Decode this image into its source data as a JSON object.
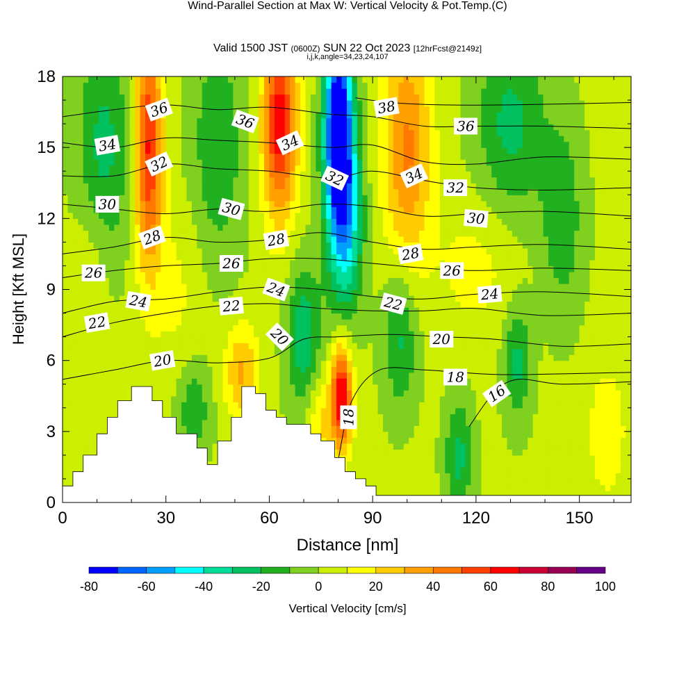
{
  "header": {
    "title": "Wind-Parallel Section at Max W: Vertical Velocity & Pot.Temp.",
    "copyright": "(C)",
    "valid_prefix": "Valid 1500 JST",
    "valid_utc": "(0600Z)",
    "valid_date": "SUN 22 Oct 2023",
    "forecast": "[12hrFcst@2149z]",
    "ijk": "i,j,k,angle=34,23,24,107"
  },
  "chart_data": {
    "type": "heatmap",
    "xlabel": "Distance [nm]",
    "ylabel": "Height [Kft MSL]",
    "xlim": [
      0,
      165
    ],
    "ylim": [
      0,
      18
    ],
    "xticks": [
      0,
      30,
      60,
      90,
      120,
      150
    ],
    "yticks": [
      0,
      3,
      6,
      9,
      12,
      15,
      18
    ],
    "colorbar": {
      "label": "Vertical Velocity [cm/s]",
      "ticks": [
        -80,
        -60,
        -40,
        -20,
        0,
        20,
        40,
        60,
        80,
        100
      ],
      "levels": [
        -80,
        -70,
        -60,
        -50,
        -40,
        -30,
        -20,
        -10,
        0,
        10,
        20,
        30,
        40,
        50,
        60,
        70,
        80,
        90,
        100
      ],
      "colors": [
        "#0000ff",
        "#0066ff",
        "#00a0ff",
        "#00ffff",
        "#00dd99",
        "#00c060",
        "#20b020",
        "#80d020",
        "#ccee00",
        "#ffff00",
        "#ffcc00",
        "#ffa000",
        "#ff7800",
        "#ff4000",
        "#ff0000",
        "#cc0033",
        "#990055",
        "#660088"
      ]
    },
    "terrain": [
      [
        0,
        0.7
      ],
      [
        3,
        0.7
      ],
      [
        3,
        1.3
      ],
      [
        6,
        1.3
      ],
      [
        6,
        2
      ],
      [
        10,
        2
      ],
      [
        10,
        2.9
      ],
      [
        13,
        2.9
      ],
      [
        13,
        3.6
      ],
      [
        16,
        3.6
      ],
      [
        16,
        4.3
      ],
      [
        20,
        4.3
      ],
      [
        20,
        4.9
      ],
      [
        26,
        4.9
      ],
      [
        26,
        4.3
      ],
      [
        29,
        4.3
      ],
      [
        29,
        3.6
      ],
      [
        33,
        3.6
      ],
      [
        33,
        2.9
      ],
      [
        39,
        2.9
      ],
      [
        39,
        2.3
      ],
      [
        42,
        2.3
      ],
      [
        42,
        1.6
      ],
      [
        45,
        1.6
      ],
      [
        45,
        2.6
      ],
      [
        49,
        2.6
      ],
      [
        49,
        3.6
      ],
      [
        52,
        3.6
      ],
      [
        52,
        4.9
      ],
      [
        56,
        4.9
      ],
      [
        56,
        4.6
      ],
      [
        59,
        4.6
      ],
      [
        59,
        3.9
      ],
      [
        62,
        3.9
      ],
      [
        62,
        3.6
      ],
      [
        65,
        3.6
      ],
      [
        65,
        3.3
      ],
      [
        72,
        3.3
      ],
      [
        72,
        2.9
      ],
      [
        75,
        2.9
      ],
      [
        75,
        2.6
      ],
      [
        79,
        2.6
      ],
      [
        79,
        1.9
      ],
      [
        82,
        1.9
      ],
      [
        82,
        1.3
      ],
      [
        85,
        1.3
      ],
      [
        85,
        1
      ],
      [
        88,
        1
      ],
      [
        88,
        0.7
      ],
      [
        91,
        0.7
      ],
      [
        91,
        0.3
      ],
      [
        165,
        0.3
      ]
    ],
    "w_field": [
      {
        "x": 80,
        "z": 16,
        "w": -90,
        "sx": 4,
        "sz": 4
      },
      {
        "x": 82,
        "z": 12,
        "w": -50,
        "sx": 5,
        "sz": 4
      },
      {
        "x": 25,
        "z": 15,
        "w": 60,
        "sx": 4,
        "sz": 5
      },
      {
        "x": 63,
        "z": 16,
        "w": 65,
        "sx": 5,
        "sz": 4
      },
      {
        "x": 100,
        "z": 15,
        "w": 40,
        "sx": 7,
        "sz": 5
      },
      {
        "x": 81,
        "z": 4.5,
        "w": 70,
        "sx": 3,
        "sz": 2.2
      },
      {
        "x": 52,
        "z": 5.5,
        "w": 30,
        "sx": 5,
        "sz": 2
      },
      {
        "x": 12,
        "z": 15,
        "w": -25,
        "sx": 8,
        "sz": 5
      },
      {
        "x": 45,
        "z": 15,
        "w": -20,
        "sx": 8,
        "sz": 5
      },
      {
        "x": 130,
        "z": 16,
        "w": -25,
        "sx": 10,
        "sz": 4
      },
      {
        "x": 145,
        "z": 12,
        "w": -20,
        "sx": 6,
        "sz": 4
      },
      {
        "x": 70,
        "z": 7,
        "w": -30,
        "sx": 5,
        "sz": 3
      },
      {
        "x": 98,
        "z": 7,
        "w": -25,
        "sx": 5,
        "sz": 3
      },
      {
        "x": 132,
        "z": 6,
        "w": -25,
        "sx": 4,
        "sz": 2.5
      },
      {
        "x": 115,
        "z": 2,
        "w": -25,
        "sx": 4,
        "sz": 2.5
      },
      {
        "x": 158,
        "z": 3,
        "w": 15,
        "sx": 6,
        "sz": 3
      },
      {
        "x": 8,
        "z": 10,
        "w": 10,
        "sx": 6,
        "sz": 3
      },
      {
        "x": 33,
        "z": 9,
        "w": 10,
        "sx": 8,
        "sz": 4
      },
      {
        "x": 38,
        "z": 4,
        "w": -20,
        "sx": 5,
        "sz": 2
      },
      {
        "x": 120,
        "z": 10,
        "w": 12,
        "sx": 12,
        "sz": 3
      },
      {
        "x": 75,
        "z": 3.5,
        "w": 20,
        "sx": 4,
        "sz": 2
      }
    ],
    "theta_contours": [
      {
        "label": "16",
        "points": [
          [
            118,
            3.2
          ],
          [
            125,
            4.6
          ],
          [
            132,
            5.2
          ],
          [
            145,
            5.0
          ],
          [
            165,
            5.1
          ]
        ]
      },
      {
        "label": "18",
        "points": [
          [
            80,
            1.8
          ],
          [
            84,
            4.3
          ],
          [
            92,
            5.6
          ],
          [
            105,
            5.6
          ],
          [
            115,
            5.5
          ],
          [
            130,
            5.4
          ],
          [
            165,
            5.5
          ]
        ]
      },
      {
        "label": "20",
        "points": [
          [
            0,
            5.2
          ],
          [
            15,
            5.6
          ],
          [
            30,
            6.0
          ],
          [
            45,
            5.9
          ],
          [
            60,
            6.1
          ],
          [
            70,
            6.9
          ],
          [
            80,
            7.0
          ],
          [
            95,
            7.1
          ],
          [
            110,
            7.0
          ],
          [
            125,
            6.9
          ],
          [
            145,
            6.6
          ],
          [
            165,
            6.7
          ]
        ]
      },
      {
        "label": "22",
        "points": [
          [
            0,
            7.0
          ],
          [
            15,
            7.6
          ],
          [
            30,
            8.0
          ],
          [
            45,
            8.3
          ],
          [
            60,
            8.4
          ],
          [
            75,
            8.2
          ],
          [
            90,
            8.1
          ],
          [
            105,
            8.1
          ],
          [
            120,
            8.2
          ],
          [
            140,
            7.9
          ],
          [
            165,
            8.0
          ]
        ]
      },
      {
        "label": "24",
        "points": [
          [
            0,
            8.0
          ],
          [
            15,
            8.5
          ],
          [
            30,
            8.6
          ],
          [
            45,
            8.9
          ],
          [
            60,
            9.1
          ],
          [
            75,
            9.0
          ],
          [
            90,
            8.7
          ],
          [
            105,
            8.6
          ],
          [
            120,
            8.8
          ],
          [
            140,
            8.9
          ],
          [
            165,
            8.7
          ]
        ]
      },
      {
        "label": "26",
        "points": [
          [
            0,
            9.5
          ],
          [
            15,
            9.8
          ],
          [
            30,
            10.0
          ],
          [
            45,
            10.1
          ],
          [
            60,
            10.3
          ],
          [
            75,
            10.3
          ],
          [
            90,
            10.1
          ],
          [
            105,
            9.9
          ],
          [
            120,
            9.8
          ],
          [
            140,
            9.9
          ],
          [
            165,
            9.8
          ]
        ]
      },
      {
        "label": "28",
        "points": [
          [
            0,
            10.5
          ],
          [
            15,
            10.8
          ],
          [
            30,
            11.2
          ],
          [
            45,
            11.0
          ],
          [
            60,
            11.1
          ],
          [
            75,
            11.4
          ],
          [
            90,
            11.0
          ],
          [
            105,
            10.7
          ],
          [
            120,
            10.8
          ],
          [
            140,
            10.9
          ],
          [
            165,
            10.7
          ]
        ]
      },
      {
        "label": "30",
        "points": [
          [
            0,
            12.6
          ],
          [
            15,
            12.4
          ],
          [
            30,
            12.2
          ],
          [
            45,
            12.4
          ],
          [
            60,
            12.3
          ],
          [
            75,
            12.6
          ],
          [
            90,
            12.5
          ],
          [
            105,
            12.1
          ],
          [
            120,
            12.2
          ],
          [
            140,
            12.3
          ],
          [
            165,
            12.1
          ]
        ]
      },
      {
        "label": "32",
        "points": [
          [
            0,
            13.8
          ],
          [
            15,
            13.8
          ],
          [
            30,
            14.3
          ],
          [
            45,
            14.1
          ],
          [
            60,
            14.0
          ],
          [
            78,
            13.7
          ],
          [
            90,
            14.0
          ],
          [
            105,
            13.6
          ],
          [
            120,
            13.3
          ],
          [
            140,
            13.2
          ],
          [
            165,
            13.3
          ]
        ]
      },
      {
        "label": "34",
        "points": [
          [
            0,
            15.2
          ],
          [
            15,
            15.0
          ],
          [
            30,
            15.4
          ],
          [
            45,
            15.3
          ],
          [
            60,
            15.2
          ],
          [
            78,
            15.0
          ],
          [
            90,
            15.1
          ],
          [
            105,
            14.4
          ],
          [
            120,
            14.3
          ],
          [
            140,
            14.6
          ],
          [
            165,
            14.5
          ]
        ]
      },
      {
        "label": "36",
        "points": [
          [
            0,
            16.3
          ],
          [
            15,
            16.6
          ],
          [
            30,
            16.8
          ],
          [
            45,
            16.6
          ],
          [
            60,
            16.7
          ],
          [
            78,
            16.4
          ],
          [
            90,
            16.3
          ],
          [
            105,
            15.9
          ],
          [
            120,
            15.9
          ],
          [
            140,
            15.9
          ],
          [
            165,
            15.8
          ]
        ]
      },
      {
        "label": "38",
        "points": [
          [
            85,
            17.1
          ],
          [
            95,
            16.9
          ],
          [
            110,
            16.8
          ],
          [
            130,
            16.8
          ],
          [
            165,
            16.9
          ]
        ]
      }
    ],
    "theta_labels": [
      {
        "text": "36",
        "x": 28,
        "z": 16.6,
        "angle": -20
      },
      {
        "text": "34",
        "x": 13,
        "z": 15.1,
        "angle": -10
      },
      {
        "text": "32",
        "x": 28,
        "z": 14.3,
        "angle": -25
      },
      {
        "text": "36",
        "x": 53,
        "z": 16.1,
        "angle": 20
      },
      {
        "text": "34",
        "x": 66,
        "z": 15.2,
        "angle": -25
      },
      {
        "text": "32",
        "x": 79,
        "z": 13.7,
        "angle": 25
      },
      {
        "text": "38",
        "x": 94,
        "z": 16.7,
        "angle": -10
      },
      {
        "text": "36",
        "x": 117,
        "z": 15.9,
        "angle": 0
      },
      {
        "text": "34",
        "x": 102,
        "z": 13.8,
        "angle": -25
      },
      {
        "text": "32",
        "x": 114,
        "z": 13.3,
        "angle": 0
      },
      {
        "text": "30",
        "x": 13,
        "z": 12.6,
        "angle": 0
      },
      {
        "text": "30",
        "x": 49,
        "z": 12.4,
        "angle": 15
      },
      {
        "text": "30",
        "x": 120,
        "z": 12.0,
        "angle": 5
      },
      {
        "text": "28",
        "x": 26,
        "z": 11.2,
        "angle": -20
      },
      {
        "text": "28",
        "x": 62,
        "z": 11.1,
        "angle": -10
      },
      {
        "text": "28",
        "x": 101,
        "z": 10.5,
        "angle": -10
      },
      {
        "text": "26",
        "x": 9,
        "z": 9.7,
        "angle": 0
      },
      {
        "text": "26",
        "x": 49,
        "z": 10.1,
        "angle": 0
      },
      {
        "text": "26",
        "x": 113,
        "z": 9.8,
        "angle": 0
      },
      {
        "text": "24",
        "x": 22,
        "z": 8.5,
        "angle": 10
      },
      {
        "text": "24",
        "x": 62,
        "z": 9.0,
        "angle": 20
      },
      {
        "text": "24",
        "x": 124,
        "z": 8.8,
        "angle": -5
      },
      {
        "text": "22",
        "x": 10,
        "z": 7.6,
        "angle": -10
      },
      {
        "text": "22",
        "x": 49,
        "z": 8.3,
        "angle": -5
      },
      {
        "text": "22",
        "x": 96,
        "z": 8.4,
        "angle": 15
      },
      {
        "text": "20",
        "x": 29,
        "z": 6.0,
        "angle": -10
      },
      {
        "text": "20",
        "x": 63,
        "z": 7.0,
        "angle": 45
      },
      {
        "text": "20",
        "x": 110,
        "z": 6.9,
        "angle": 0
      },
      {
        "text": "18",
        "x": 83,
        "z": 3.6,
        "angle": -90
      },
      {
        "text": "18",
        "x": 114,
        "z": 5.3,
        "angle": 0
      },
      {
        "text": "16",
        "x": 126,
        "z": 4.6,
        "angle": -35
      }
    ]
  }
}
